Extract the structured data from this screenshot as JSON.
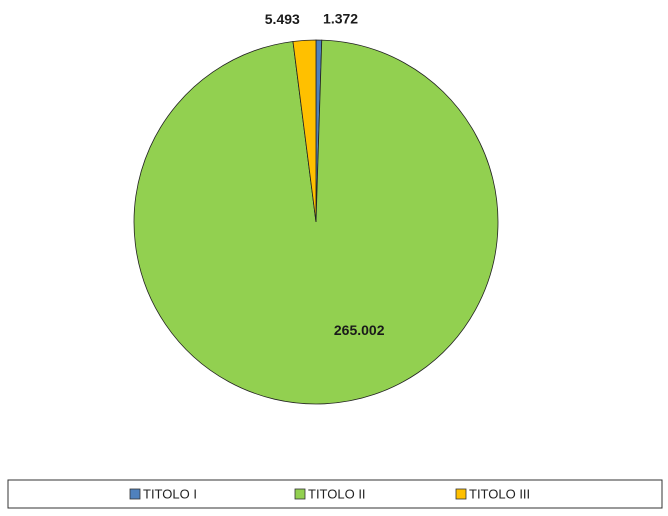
{
  "chart_data": {
    "type": "pie",
    "categories": [
      "TITOLO I",
      "TITOLO II",
      "TITOLO III"
    ],
    "values": [
      1372,
      265002,
      5493
    ],
    "value_labels": [
      "1.372",
      "265.002",
      "5.493"
    ],
    "colors": [
      "#4f81bd",
      "#92d050",
      "#ffc000"
    ],
    "legend": "bottom"
  }
}
